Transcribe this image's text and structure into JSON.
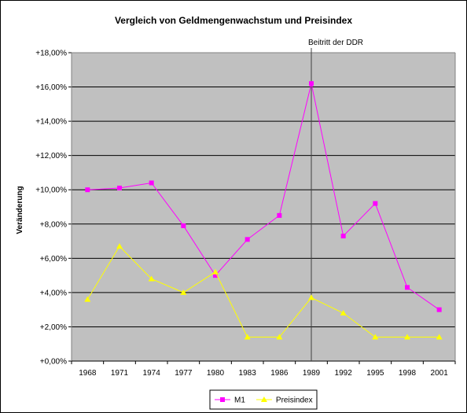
{
  "chart_data": {
    "type": "line",
    "title": "Vergleich von Geldmengenwachstum und Preisindex",
    "xlabel": "",
    "ylabel": "Veränderung",
    "categories": [
      "1968",
      "1971",
      "1974",
      "1977",
      "1980",
      "1983",
      "1986",
      "1989",
      "1992",
      "1995",
      "1998",
      "2001"
    ],
    "ylim": [
      0,
      18
    ],
    "y_ticks": [
      {
        "value": 0,
        "label": "+0,00%"
      },
      {
        "value": 2,
        "label": "+2,00%"
      },
      {
        "value": 4,
        "label": "+4,00%"
      },
      {
        "value": 6,
        "label": "+6,00%"
      },
      {
        "value": 8,
        "label": "+8,00%"
      },
      {
        "value": 10,
        "label": "+10,00%"
      },
      {
        "value": 12,
        "label": "+12,00%"
      },
      {
        "value": 14,
        "label": "+14,00%"
      },
      {
        "value": 16,
        "label": "+16,00%"
      },
      {
        "value": 18,
        "label": "+18,00%"
      }
    ],
    "grid": true,
    "plot_background": "#c0c0c0",
    "legend_position": "bottom",
    "series": [
      {
        "name": "M1",
        "color": "#ff00ff",
        "marker": "square",
        "values": [
          10.0,
          10.1,
          10.4,
          7.9,
          5.0,
          7.1,
          8.5,
          16.2,
          7.3,
          9.2,
          4.3,
          3.0
        ]
      },
      {
        "name": "Preisindex",
        "color": "#ffff00",
        "marker": "triangle",
        "values": [
          3.6,
          6.7,
          4.8,
          4.0,
          5.2,
          1.4,
          1.4,
          3.7,
          2.8,
          1.4,
          1.4,
          1.4
        ]
      }
    ],
    "annotation": {
      "text": "Beitritt der DDR",
      "x_category": "1989"
    }
  }
}
